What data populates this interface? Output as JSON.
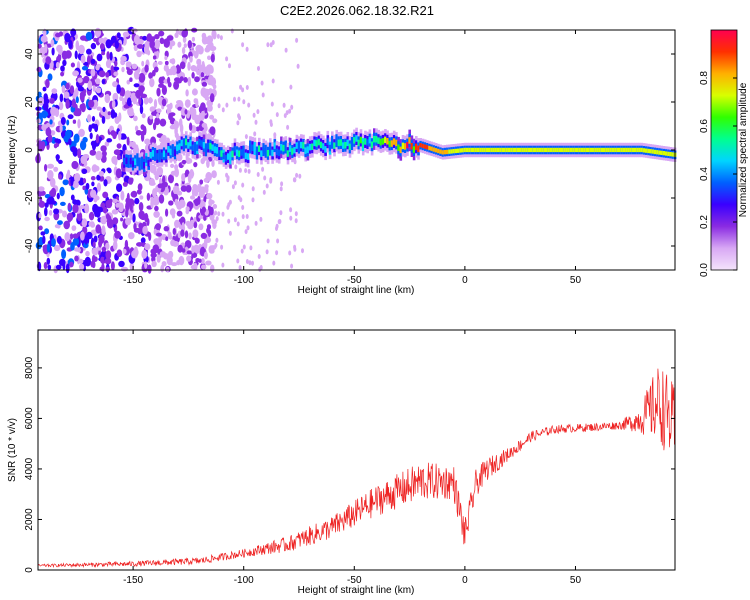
{
  "title": "C2E2.2026.062.18.32.R21",
  "chart_data": [
    {
      "type": "heatmap",
      "name": "spectrogram",
      "xlabel": "Height of straight line (km)",
      "ylabel": "Frequency (Hz)",
      "xlim": [
        -193,
        95
      ],
      "ylim": [
        -50,
        50
      ],
      "xticks": [
        -150,
        -100,
        -50,
        0,
        50
      ],
      "yticks": [
        -40,
        -20,
        0,
        20,
        40
      ],
      "colorbar": {
        "label": "Normalized spectral amplitude",
        "range": [
          0,
          1
        ],
        "ticks": [
          0.0,
          0.2,
          0.4,
          0.6,
          0.8
        ],
        "colors": [
          "#f4e4fb",
          "#d8a8f4",
          "#8a2be2",
          "#3a00ff",
          "#0060ff",
          "#00d4ff",
          "#00ff90",
          "#30ff00",
          "#d8ff00",
          "#ffb000",
          "#ff3000",
          "#ff0050"
        ]
      },
      "ridge": [
        {
          "x": -148,
          "f": -6,
          "a": 0.35
        },
        {
          "x": -125,
          "f": 3,
          "a": 0.45
        },
        {
          "x": -110,
          "f": -2,
          "a": 0.5
        },
        {
          "x": -90,
          "f": 0,
          "a": 0.45
        },
        {
          "x": -70,
          "f": 1,
          "a": 0.5
        },
        {
          "x": -50,
          "f": 3,
          "a": 0.5
        },
        {
          "x": -40,
          "f": 4,
          "a": 0.55
        },
        {
          "x": -30,
          "f": 2,
          "a": 0.85
        },
        {
          "x": -20,
          "f": 2,
          "a": 0.9
        },
        {
          "x": -10,
          "f": -1,
          "a": 0.8
        },
        {
          "x": 0,
          "f": 0,
          "a": 0.7
        },
        {
          "x": 20,
          "f": 0,
          "a": 0.7
        },
        {
          "x": 50,
          "f": 0,
          "a": 0.72
        },
        {
          "x": 80,
          "f": 0,
          "a": 0.72
        },
        {
          "x": 95,
          "f": -2,
          "a": 0.7
        }
      ]
    },
    {
      "type": "line",
      "name": "snr",
      "xlabel": "Height of straight line (km)",
      "ylabel": "SNR (10 * v/v)",
      "xlim": [
        -193,
        95
      ],
      "ylim": [
        0,
        9500
      ],
      "xticks": [
        -150,
        -100,
        -50,
        0,
        50
      ],
      "yticks": [
        0,
        2000,
        4000,
        6000,
        8000
      ],
      "color": "#ee2222",
      "trend": [
        {
          "x": -193,
          "y": 150
        },
        {
          "x": -150,
          "y": 200
        },
        {
          "x": -120,
          "y": 300
        },
        {
          "x": -100,
          "y": 600
        },
        {
          "x": -80,
          "y": 900
        },
        {
          "x": -60,
          "y": 1500
        },
        {
          "x": -40,
          "y": 2500
        },
        {
          "x": -20,
          "y": 3200
        },
        {
          "x": -5,
          "y": 3200
        },
        {
          "x": 0,
          "y": 1100
        },
        {
          "x": 5,
          "y": 3200
        },
        {
          "x": 10,
          "y": 3800
        },
        {
          "x": 20,
          "y": 4500
        },
        {
          "x": 30,
          "y": 5200
        },
        {
          "x": 40,
          "y": 5500
        },
        {
          "x": 60,
          "y": 5600
        },
        {
          "x": 75,
          "y": 5700
        },
        {
          "x": 82,
          "y": 5800
        },
        {
          "x": 88,
          "y": 6000
        },
        {
          "x": 95,
          "y": 5000
        }
      ],
      "noise": [
        {
          "x": -193,
          "amp": 80
        },
        {
          "x": -100,
          "amp": 250
        },
        {
          "x": -60,
          "amp": 700
        },
        {
          "x": -20,
          "amp": 1200
        },
        {
          "x": 0,
          "amp": 1000
        },
        {
          "x": 20,
          "amp": 400
        },
        {
          "x": 40,
          "amp": 250
        },
        {
          "x": 70,
          "amp": 250
        },
        {
          "x": 78,
          "amp": 700
        },
        {
          "x": 88,
          "amp": 2500
        },
        {
          "x": 95,
          "amp": 2500
        }
      ]
    }
  ]
}
